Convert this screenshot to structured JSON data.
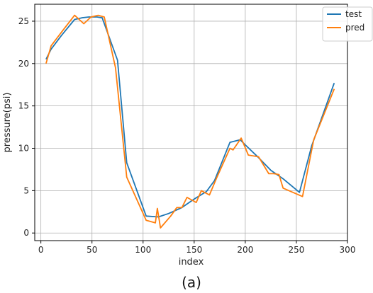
{
  "chart_data": {
    "type": "line",
    "title": "",
    "caption": "(a)",
    "xlabel": "index",
    "ylabel": "pressure(psi)",
    "xlim": [
      -6,
      300
    ],
    "ylim": [
      -0.9,
      27
    ],
    "xticks": [
      0,
      50,
      100,
      150,
      200,
      250,
      300
    ],
    "yticks": [
      0,
      5,
      10,
      15,
      20,
      25
    ],
    "grid": true,
    "legend_position": "top-right",
    "series": [
      {
        "name": "test",
        "color": "#1f77b4",
        "x": [
          5,
          10,
          20,
          33,
          40,
          47,
          55,
          60,
          75,
          84,
          103,
          115,
          125,
          138,
          150,
          162,
          170,
          185,
          195,
          200,
          213,
          225,
          237,
          253,
          265,
          287
        ],
        "y": [
          20.5,
          21.7,
          23.3,
          25.2,
          25.4,
          25.5,
          25.5,
          25.4,
          20.4,
          8.3,
          2.0,
          1.9,
          2.3,
          3.0,
          4.0,
          4.9,
          6.2,
          10.7,
          11.0,
          10.4,
          8.9,
          7.4,
          6.4,
          4.8,
          10.3,
          17.7
        ]
      },
      {
        "name": "pred",
        "color": "#ff7f0e",
        "x": [
          5,
          10,
          22,
          33,
          42,
          49,
          56,
          62,
          73,
          84,
          103,
          112,
          114,
          117,
          127,
          133,
          138,
          143,
          152,
          157,
          165,
          172,
          185,
          188,
          196,
          203,
          213,
          223,
          228,
          233,
          237,
          256,
          267,
          287
        ],
        "y": [
          20.0,
          22.1,
          24.0,
          25.7,
          24.7,
          25.5,
          25.7,
          25.5,
          19.5,
          6.6,
          1.5,
          1.2,
          2.9,
          0.6,
          2.0,
          3.0,
          3.0,
          4.2,
          3.6,
          5.0,
          4.5,
          6.5,
          10.0,
          9.8,
          11.2,
          9.2,
          9.0,
          7.0,
          7.0,
          6.9,
          5.3,
          4.3,
          11.0,
          17.0
        ]
      }
    ]
  }
}
